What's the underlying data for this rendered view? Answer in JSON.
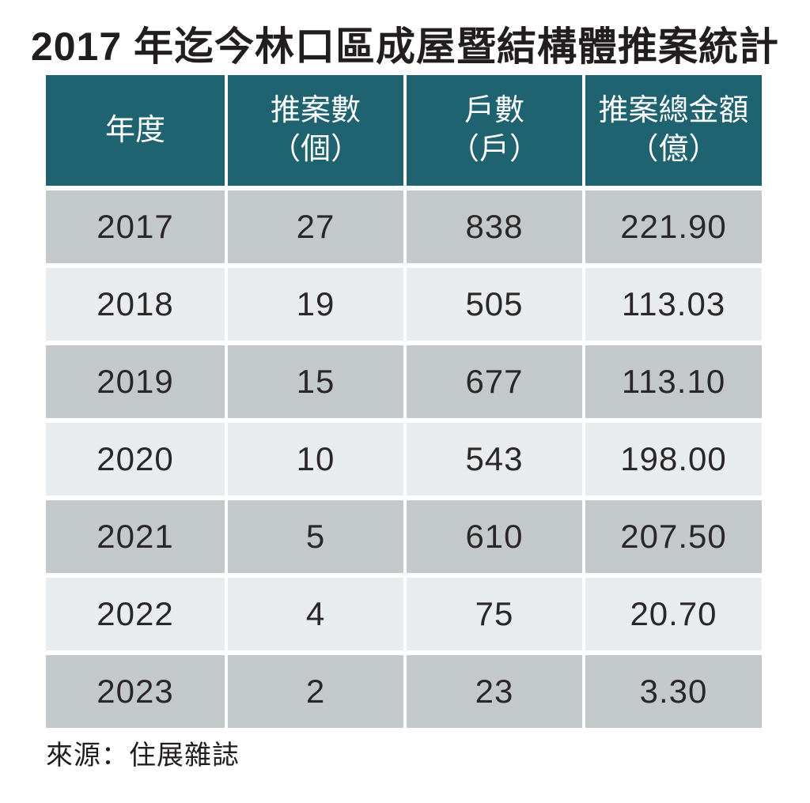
{
  "title": "2017 年迄今林口區成屋暨結構體推案統計",
  "source": "來源：住展雜誌",
  "colors": {
    "header_bg": "#1e636f",
    "header_text": "#ffffff",
    "row_dark": "#c3c9cb",
    "row_light": "#e9ecee",
    "title_text": "#221e1f",
    "cell_text": "#2b2727"
  },
  "table": {
    "headers": [
      "年度",
      "推案數\n（個）",
      "戶數\n（戶）",
      "推案總金額\n（億）"
    ],
    "rows": [
      {
        "cells": [
          "2017",
          "27",
          "838",
          "221.90"
        ]
      },
      {
        "cells": [
          "2018",
          "19",
          "505",
          "113.03"
        ]
      },
      {
        "cells": [
          "2019",
          "15",
          "677",
          "113.10"
        ]
      },
      {
        "cells": [
          "2020",
          "10",
          "543",
          "198.00"
        ]
      },
      {
        "cells": [
          "2021",
          "5",
          "610",
          "207.50"
        ]
      },
      {
        "cells": [
          "2022",
          "4",
          "75",
          "20.70"
        ]
      },
      {
        "cells": [
          "2023",
          "2",
          "23",
          "3.30"
        ]
      }
    ]
  },
  "chart_data": {
    "type": "table",
    "title": "2017 年迄今林口區成屋暨結構體推案統計",
    "columns": [
      "年度",
      "推案數（個）",
      "戶數（戶）",
      "推案總金額（億）"
    ],
    "rows": [
      [
        2017,
        27,
        838,
        221.9
      ],
      [
        2018,
        19,
        505,
        113.03
      ],
      [
        2019,
        15,
        677,
        113.1
      ],
      [
        2020,
        10,
        543,
        198.0
      ],
      [
        2021,
        5,
        610,
        207.5
      ],
      [
        2022,
        4,
        75,
        20.7
      ],
      [
        2023,
        2,
        23,
        3.3
      ]
    ],
    "source": "來源：住展雜誌",
    "layout_hints": {
      "header_style": "teal background, white text",
      "row_striping": "odd rows dark gray, even rows light gray",
      "alignment": "all cells centered"
    }
  }
}
